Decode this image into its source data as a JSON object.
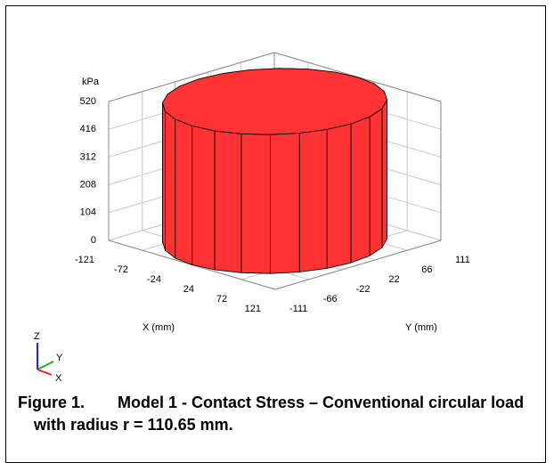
{
  "chart_data": {
    "type": "cylinder3d",
    "zlabel": "kPa",
    "xlabel": "X (mm)",
    "ylabel": "Y (mm)",
    "value": 520,
    "color": "#ff3333",
    "zlim": [
      0,
      520
    ],
    "zticks": [
      0,
      104,
      208,
      312,
      416,
      520
    ],
    "xlim": [
      -121,
      121
    ],
    "xticks": [
      -121,
      -72,
      -24,
      24,
      72,
      121
    ],
    "ylim": [
      -111,
      111
    ],
    "yticks": [
      -111,
      -66,
      -22,
      22,
      66,
      111
    ],
    "radius": 110.65,
    "axis_triad": {
      "z": "Z",
      "y": "Y",
      "x": "X"
    }
  },
  "caption": {
    "label": "Figure 1.",
    "text": "Model 1 - Contact Stress – Conventional circular load with radius r = 110.65 mm."
  }
}
